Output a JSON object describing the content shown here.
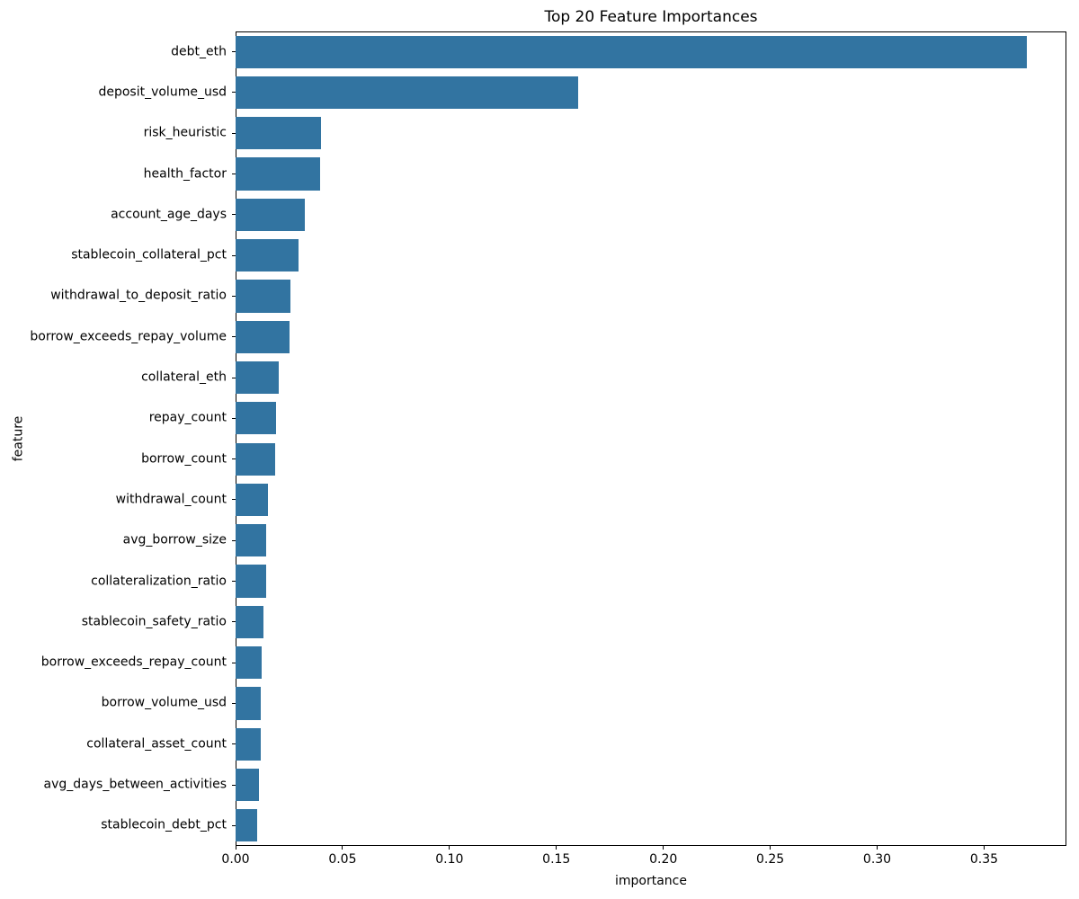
{
  "colors": {
    "bar": "#3274a1",
    "axis": "#000000",
    "text": "#000000",
    "background": "#ffffff"
  },
  "chart_data": {
    "type": "bar",
    "orientation": "horizontal",
    "title": "Top 20 Feature Importances",
    "xlabel": "importance",
    "ylabel": "feature",
    "categories": [
      "debt_eth",
      "deposit_volume_usd",
      "risk_heuristic",
      "health_factor",
      "account_age_days",
      "stablecoin_collateral_pct",
      "withdrawal_to_deposit_ratio",
      "borrow_exceeds_repay_volume",
      "collateral_eth",
      "repay_count",
      "borrow_count",
      "withdrawal_count",
      "avg_borrow_size",
      "collateralization_ratio",
      "stablecoin_safety_ratio",
      "borrow_exceeds_repay_count",
      "borrow_volume_usd",
      "collateral_asset_count",
      "avg_days_between_activities",
      "stablecoin_debt_pct"
    ],
    "values": [
      0.37,
      0.16,
      0.0401,
      0.0397,
      0.0325,
      0.0293,
      0.0258,
      0.0254,
      0.0201,
      0.0188,
      0.0185,
      0.0153,
      0.0144,
      0.0142,
      0.0129,
      0.0121,
      0.0116,
      0.0116,
      0.0109,
      0.0101
    ],
    "xlim": [
      0,
      0.3885
    ],
    "x_ticks": [
      0.0,
      0.05,
      0.1,
      0.15,
      0.2,
      0.25,
      0.3,
      0.35
    ],
    "x_tick_labels": [
      "0.00",
      "0.05",
      "0.10",
      "0.15",
      "0.20",
      "0.25",
      "0.30",
      "0.35"
    ],
    "grid": false,
    "legend": null
  }
}
